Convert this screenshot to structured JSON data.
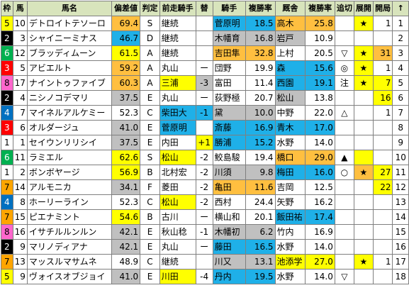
{
  "headers": [
    "枠",
    "馬",
    "馬名",
    "偏差値",
    "判定",
    "前走騎手",
    "替",
    "騎手",
    "複勝率",
    "厩舎",
    "複勝率",
    "追切",
    "展開",
    "開局",
    "↑"
  ],
  "colors": {
    "waku": {
      "1": "#ffffff",
      "2": "#000000",
      "3": "#ff0000",
      "4": "#0070c0",
      "5": "#ffff00",
      "6": "#00b050",
      "7": "#ffa500",
      "8": "#ff66cc"
    },
    "header_bg": "#d8e4bc",
    "cyan": "#1fb0e8",
    "orange": "#ffbf40",
    "yellow": "#ffff00",
    "gray": "#c0c0c0"
  },
  "rows": [
    {
      "waku": "5",
      "uma": "10",
      "name": "デトロイトテソーロ",
      "hensa": "69.4",
      "hantei": "S",
      "zensou": "継続",
      "kae": "",
      "kishu": "菅原明",
      "kfuku": "18.5",
      "kyusha": "高木",
      "cfuku": "25.8",
      "oikiri": "",
      "tenkai": "★",
      "kaikyoku": "1",
      "last": "1"
    },
    {
      "waku": "2",
      "uma": "3",
      "name": "シャイニーミナス",
      "hensa": "46.7",
      "hantei": "D",
      "zensou": "継続",
      "kae": "",
      "kishu": "木幡育",
      "kfuku": "16.8",
      "kyusha": "岩戸",
      "cfuku": "10.9",
      "oikiri": "",
      "tenkai": "",
      "kaikyoku": "",
      "last": "2"
    },
    {
      "waku": "6",
      "uma": "12",
      "name": "ブラッディムーン",
      "hensa": "61.5",
      "hantei": "A",
      "zensou": "継続",
      "kae": "",
      "kishu": "吉田隼",
      "kfuku": "32.8",
      "kyusha": "上村",
      "cfuku": "20.5",
      "oikiri": "▽",
      "tenkai": "★",
      "kaikyoku": "31",
      "last": "3"
    },
    {
      "waku": "3",
      "uma": "5",
      "name": "アビエルト",
      "hensa": "59.2",
      "hantei": "A",
      "zensou": "丸山",
      "kae": "ー",
      "kishu": "団野",
      "kfuku": "19.9",
      "kyusha": "森",
      "cfuku": "15.6",
      "oikiri": "◎",
      "tenkai": "★",
      "kaikyoku": "1",
      "last": "4"
    },
    {
      "waku": "8",
      "uma": "17",
      "name": "ナイントゥファイブ",
      "hensa": "60.3",
      "hantei": "A",
      "zensou": "三浦",
      "kae": "-3",
      "kishu": "富田",
      "kfuku": "11.4",
      "kyusha": "西園",
      "cfuku": "19.1",
      "oikiri": "注",
      "tenkai": "★",
      "kaikyoku": "7",
      "last": "5"
    },
    {
      "waku": "2",
      "uma": "4",
      "name": "ニシノコデマリ",
      "hensa": "37.5",
      "hantei": "E",
      "zensou": "丸山",
      "kae": "ー",
      "kishu": "荻野極",
      "kfuku": "20.7",
      "kyusha": "松山",
      "cfuku": "13.8",
      "oikiri": "",
      "tenkai": "",
      "kaikyoku": "16",
      "last": "6"
    },
    {
      "waku": "4",
      "uma": "7",
      "name": "マイネルアルケミー",
      "hensa": "52.3",
      "hantei": "C",
      "zensou": "柴田大",
      "kae": "-1",
      "kishu": "黛",
      "kfuku": "10.0",
      "kyusha": "中野",
      "cfuku": "22.0",
      "oikiri": "△",
      "tenkai": "",
      "kaikyoku": "1",
      "last": "7"
    },
    {
      "waku": "3",
      "uma": "6",
      "name": "オルダージュ",
      "hensa": "41.0",
      "hantei": "E",
      "zensou": "菅原明",
      "kae": "",
      "kishu": "斎藤",
      "kfuku": "16.9",
      "kyusha": "青木",
      "cfuku": "17.0",
      "oikiri": "",
      "tenkai": "",
      "kaikyoku": "",
      "last": "8"
    },
    {
      "waku": "1",
      "uma": "1",
      "name": "セイウンリリシイ",
      "hensa": "37.5",
      "hantei": "E",
      "zensou": "内田",
      "kae": "+1",
      "kishu": "勝浦",
      "kfuku": "15.2",
      "kyusha": "水野",
      "cfuku": "14.0",
      "oikiri": "",
      "tenkai": "",
      "kaikyoku": "",
      "last": "9"
    },
    {
      "waku": "6",
      "uma": "11",
      "name": "ラミエル",
      "hensa": "62.6",
      "hantei": "S",
      "zensou": "松山",
      "kae": "-2",
      "kishu": "鮫島駿",
      "kfuku": "19.4",
      "kyusha": "橋口",
      "cfuku": "29.0",
      "oikiri": "▲",
      "tenkai": "",
      "kaikyoku": "",
      "last": "10"
    },
    {
      "waku": "1",
      "uma": "2",
      "name": "ボンボヤージ",
      "hensa": "56.9",
      "hantei": "B",
      "zensou": "北村宏",
      "kae": "-2",
      "kishu": "川須",
      "kfuku": "9.8",
      "kyusha": "梅田",
      "cfuku": "16.0",
      "oikiri": "○",
      "tenkai": "★",
      "kaikyoku": "27",
      "last": "11"
    },
    {
      "waku": "7",
      "uma": "14",
      "name": "アルモニカ",
      "hensa": "34.1",
      "hantei": "F",
      "zensou": "菱田",
      "kae": "-2",
      "kishu": "亀田",
      "kfuku": "11.6",
      "kyusha": "吉岡",
      "cfuku": "12.5",
      "oikiri": "",
      "tenkai": "",
      "kaikyoku": "22",
      "last": "12"
    },
    {
      "waku": "4",
      "uma": "8",
      "name": "ホーリーライン",
      "hensa": "52.3",
      "hantei": "C",
      "zensou": "松山",
      "kae": "-2",
      "kishu": "西村",
      "kfuku": "24.4",
      "kyusha": "矢野",
      "cfuku": "16.2",
      "oikiri": "",
      "tenkai": "",
      "kaikyoku": "",
      "last": "13"
    },
    {
      "waku": "7",
      "uma": "15",
      "name": "ピエナミント",
      "hensa": "54.6",
      "hantei": "B",
      "zensou": "古川",
      "kae": "ー",
      "kishu": "横山和",
      "kfuku": "20.1",
      "kyusha": "飯田祐",
      "cfuku": "17.4",
      "oikiri": "",
      "tenkai": "",
      "kaikyoku": "",
      "last": "14"
    },
    {
      "waku": "8",
      "uma": "16",
      "name": "イサチルルンルン",
      "hensa": "42.1",
      "hantei": "E",
      "zensou": "秋山稔",
      "kae": "-1",
      "kishu": "木幡初",
      "kfuku": "6.2",
      "kyusha": "竹内",
      "cfuku": "16.9",
      "oikiri": "",
      "tenkai": "",
      "kaikyoku": "",
      "last": "15"
    },
    {
      "waku": "2",
      "uma": "9",
      "name": "マリノディアナ",
      "hensa": "42.1",
      "hantei": "E",
      "zensou": "丸山",
      "kae": "ー",
      "kishu": "藤田",
      "kfuku": "16.5",
      "kyusha": "水野",
      "cfuku": "14.0",
      "oikiri": "",
      "tenkai": "",
      "kaikyoku": "",
      "last": "16"
    },
    {
      "waku": "7",
      "uma": "13",
      "name": "マッスルマサムネ",
      "hensa": "48.9",
      "hantei": "C",
      "zensou": "継続",
      "kae": "",
      "kishu": "川又",
      "kfuku": "13.1",
      "kyusha": "池添学",
      "cfuku": "27.0",
      "oikiri": "",
      "tenkai": "★",
      "kaikyoku": "1",
      "last": "17"
    },
    {
      "waku": "5",
      "uma": "9",
      "name": "ヴォイスオブジョイ",
      "hensa": "41.0",
      "hantei": "E",
      "zensou": "川田",
      "kae": "-4",
      "kishu": "丹内",
      "kfuku": "19.5",
      "kyusha": "水野",
      "cfuku": "14.0",
      "oikiri": "▽",
      "tenkai": "",
      "kaikyoku": "",
      "last": "18"
    }
  ],
  "cell_styles": [
    {
      "hensa": "o",
      "zensou": "",
      "kae": "",
      "kishu": "b",
      "kfuku": "b",
      "kyusha": "o",
      "cfuku": "o",
      "tenkai": "y",
      "kaikyoku": "",
      "last": ""
    },
    {
      "hensa": "b",
      "zensou": "",
      "kae": "",
      "kishu": "g",
      "kfuku": "g",
      "kyusha": "g",
      "cfuku": "",
      "tenkai": "",
      "kaikyoku": "",
      "last": ""
    },
    {
      "hensa": "y",
      "zensou": "",
      "kae": "",
      "kishu": "o",
      "kfuku": "o",
      "kyusha": "",
      "cfuku": "",
      "tenkai": "y",
      "kaikyoku": "o",
      "last": ""
    },
    {
      "hensa": "o",
      "zensou": "",
      "kae": "",
      "kishu": "",
      "kfuku": "",
      "kyusha": "b",
      "cfuku": "b",
      "tenkai": "y",
      "kaikyoku": "",
      "last": ""
    },
    {
      "hensa": "o",
      "zensou": "y",
      "kae": "g",
      "kishu": "",
      "kfuku": "",
      "kyusha": "b",
      "cfuku": "b",
      "tenkai": "y",
      "kaikyoku": "y",
      "last": ""
    },
    {
      "hensa": "g",
      "zensou": "",
      "kae": "",
      "kishu": "",
      "kfuku": "",
      "kyusha": "g",
      "cfuku": "",
      "tenkai": "",
      "kaikyoku": "y",
      "last": ""
    },
    {
      "hensa": "",
      "zensou": "b",
      "kae": "b",
      "kishu": "g",
      "kfuku": "g",
      "kyusha": "",
      "cfuku": "",
      "tenkai": "",
      "kaikyoku": "",
      "last": ""
    },
    {
      "hensa": "g",
      "zensou": "b",
      "kae": "",
      "kishu": "b",
      "kfuku": "b",
      "kyusha": "b",
      "cfuku": "b",
      "tenkai": "",
      "kaikyoku": "",
      "last": ""
    },
    {
      "hensa": "g",
      "zensou": "",
      "kae": "y",
      "kishu": "b",
      "kfuku": "b",
      "kyusha": "",
      "cfuku": "",
      "tenkai": "",
      "kaikyoku": "",
      "last": ""
    },
    {
      "hensa": "y",
      "zensou": "y",
      "kae": "",
      "kishu": "",
      "kfuku": "",
      "kyusha": "o",
      "cfuku": "o",
      "tenkai": "y",
      "kaikyoku": "",
      "last": ""
    },
    {
      "hensa": "y",
      "zensou": "",
      "kae": "",
      "kishu": "g",
      "kfuku": "g",
      "kyusha": "b",
      "cfuku": "b",
      "tenkai": "o",
      "kaikyoku": "y",
      "last": ""
    },
    {
      "hensa": "g",
      "zensou": "",
      "kae": "",
      "kishu": "o",
      "kfuku": "o",
      "kyusha": "",
      "cfuku": "",
      "tenkai": "",
      "kaikyoku": "y",
      "last": ""
    },
    {
      "hensa": "",
      "zensou": "y",
      "kae": "",
      "kishu": "",
      "kfuku": "",
      "kyusha": "",
      "cfuku": "",
      "tenkai": "",
      "kaikyoku": "",
      "last": ""
    },
    {
      "hensa": "y",
      "zensou": "",
      "kae": "",
      "kishu": "",
      "kfuku": "",
      "kyusha": "b",
      "cfuku": "b",
      "tenkai": "",
      "kaikyoku": "",
      "last": ""
    },
    {
      "hensa": "g",
      "zensou": "",
      "kae": "",
      "kishu": "g",
      "kfuku": "g",
      "kyusha": "",
      "cfuku": "",
      "tenkai": "",
      "kaikyoku": "",
      "last": ""
    },
    {
      "hensa": "g",
      "zensou": "",
      "kae": "",
      "kishu": "b",
      "kfuku": "b",
      "kyusha": "",
      "cfuku": "",
      "tenkai": "",
      "kaikyoku": "",
      "last": ""
    },
    {
      "hensa": "",
      "zensou": "",
      "kae": "",
      "kishu": "g",
      "kfuku": "g",
      "kyusha": "y",
      "cfuku": "y",
      "tenkai": "y",
      "kaikyoku": "",
      "last": ""
    },
    {
      "hensa": "g",
      "zensou": "y",
      "kae": "",
      "kishu": "b",
      "kfuku": "b",
      "kyusha": "",
      "cfuku": "",
      "tenkai": "",
      "kaikyoku": "",
      "last": ""
    }
  ]
}
